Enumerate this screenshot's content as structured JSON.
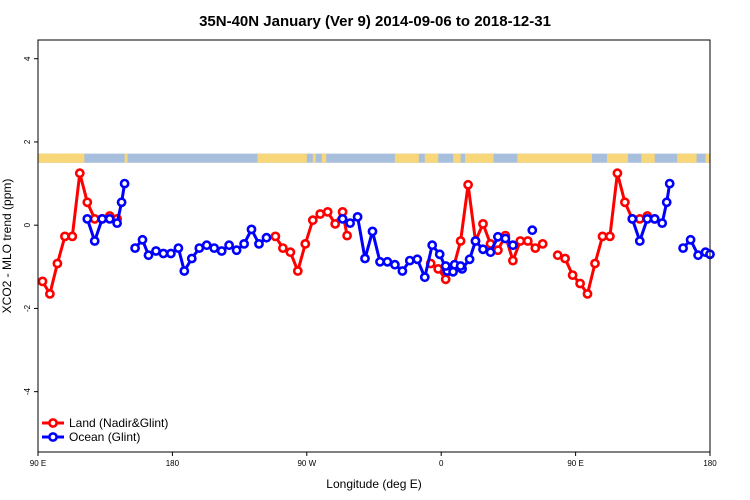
{
  "chart_data": {
    "type": "line",
    "title": "35N-40N January (Ver 9)   2014-09-06 to 2018-12-31",
    "xlabel": "Longitude (deg E)",
    "ylabel": "XCO2 - MLO trend (ppm)",
    "x_unit": "deg E",
    "xlim": [
      90,
      540
    ],
    "ylim": [
      -5.45,
      4.45
    ],
    "x_ticks": [
      {
        "value": 90,
        "label": "90 E"
      },
      {
        "value": 180,
        "label": "180"
      },
      {
        "value": 270,
        "label": "90 W"
      },
      {
        "value": 360,
        "label": "0"
      },
      {
        "value": 450,
        "label": "90 E"
      },
      {
        "value": 540,
        "label": "180"
      }
    ],
    "y_ticks": [
      {
        "value": -4,
        "label": "-4"
      },
      {
        "value": -2,
        "label": "-2"
      },
      {
        "value": 0,
        "label": "0"
      },
      {
        "value": 2,
        "label": "2"
      },
      {
        "value": 4,
        "label": "4"
      }
    ],
    "grid": false,
    "legend_position": "bottom-left",
    "land_ocean_strip": {
      "y_range": [
        1.5,
        1.72
      ],
      "ocean_color": "#a7bedc",
      "land_color": "#f8d77a",
      "land_segments": [
        [
          90,
          121
        ],
        [
          104,
          112
        ],
        [
          105,
          113
        ],
        [
          148,
          150
        ],
        [
          237,
          270
        ],
        [
          274,
          276
        ],
        [
          280,
          283
        ],
        [
          329,
          345
        ],
        [
          349,
          358
        ],
        [
          368,
          373
        ],
        [
          376,
          395
        ],
        [
          411,
          461
        ],
        [
          471,
          485
        ],
        [
          494,
          503
        ],
        [
          518,
          531
        ],
        [
          537,
          540
        ]
      ]
    },
    "series": [
      {
        "name": "Land (Nadir&Glint)",
        "color": "#ff0000",
        "segments": [
          [
            [
              93,
              -1.35
            ],
            [
              98,
              -1.65
            ],
            [
              103,
              -0.92
            ],
            [
              108,
              -0.27
            ],
            [
              113,
              -0.27
            ],
            [
              118,
              1.25
            ],
            [
              123,
              0.55
            ],
            [
              128,
              0.15
            ],
            [
              133,
              0.15
            ],
            [
              138,
              0.22
            ],
            [
              143,
              0.15
            ]
          ],
          [
            [
              249,
              -0.27
            ],
            [
              254,
              -0.55
            ],
            [
              259,
              -0.65
            ],
            [
              264,
              -1.1
            ],
            [
              269,
              -0.45
            ],
            [
              274,
              0.12
            ],
            [
              279,
              0.27
            ],
            [
              284,
              0.32
            ],
            [
              289,
              0.03
            ],
            [
              294,
              0.32
            ],
            [
              297,
              -0.25
            ]
          ],
          [
            [
              353,
              -0.92
            ],
            [
              358,
              -1.05
            ],
            [
              363,
              -1.3
            ],
            [
              368,
              -1.05
            ],
            [
              373,
              -0.38
            ],
            [
              378,
              0.97
            ],
            [
              383,
              -0.38
            ],
            [
              388,
              0.03
            ],
            [
              393,
              -0.45
            ],
            [
              398,
              -0.6
            ],
            [
              403,
              -0.25
            ],
            [
              408,
              -0.85
            ],
            [
              413,
              -0.38
            ],
            [
              418,
              -0.38
            ],
            [
              423,
              -0.55
            ],
            [
              428,
              -0.45
            ]
          ],
          [
            [
              438,
              -0.72
            ],
            [
              443,
              -0.8
            ],
            [
              448,
              -1.2
            ],
            [
              453,
              -1.4
            ],
            [
              458,
              -1.65
            ],
            [
              463,
              -0.92
            ],
            [
              468,
              -0.27
            ],
            [
              473,
              -0.27
            ],
            [
              478,
              1.25
            ],
            [
              483,
              0.55
            ],
            [
              488,
              0.15
            ],
            [
              493,
              0.15
            ],
            [
              498,
              0.22
            ],
            [
              503,
              0.15
            ]
          ]
        ]
      },
      {
        "name": "Ocean (Glint)",
        "color": "#0000ff",
        "segments": [
          [
            [
              123,
              0.15
            ],
            [
              128,
              -0.38
            ],
            [
              133,
              0.15
            ],
            [
              138,
              0.15
            ],
            [
              143,
              0.05
            ],
            [
              146,
              0.55
            ],
            [
              148,
              1.0
            ]
          ],
          [
            [
              155,
              -0.55
            ],
            [
              160,
              -0.35
            ],
            [
              164,
              -0.72
            ],
            [
              169,
              -0.62
            ],
            [
              174,
              -0.68
            ],
            [
              179,
              -0.68
            ],
            [
              184,
              -0.55
            ],
            [
              188,
              -1.1
            ],
            [
              193,
              -0.8
            ],
            [
              198,
              -0.55
            ],
            [
              203,
              -0.48
            ],
            [
              208,
              -0.55
            ],
            [
              213,
              -0.62
            ],
            [
              218,
              -0.48
            ],
            [
              223,
              -0.6
            ],
            [
              228,
              -0.45
            ],
            [
              233,
              -0.1
            ],
            [
              238,
              -0.45
            ],
            [
              243,
              -0.3
            ]
          ],
          [
            [
              294,
              0.15
            ],
            [
              299,
              0.05
            ],
            [
              304,
              0.2
            ],
            [
              309,
              -0.8
            ],
            [
              314,
              -0.15
            ],
            [
              319,
              -0.88
            ],
            [
              324,
              -0.88
            ],
            [
              329,
              -0.95
            ],
            [
              334,
              -1.1
            ],
            [
              339,
              -0.85
            ],
            [
              344,
              -0.82
            ],
            [
              349,
              -1.25
            ],
            [
              354,
              -0.48
            ],
            [
              359,
              -0.7
            ],
            [
              364,
              -1.1
            ],
            [
              369,
              -0.95
            ],
            [
              374,
              -1.05
            ],
            [
              379,
              -0.82
            ],
            [
              383,
              -0.38
            ],
            [
              388,
              -0.58
            ],
            [
              393,
              -0.65
            ],
            [
              398,
              -0.28
            ],
            [
              403,
              -0.32
            ],
            [
              408,
              -0.48
            ]
          ],
          [
            [
              421,
              -0.12
            ]
          ],
          [
            [
              488,
              0.15
            ],
            [
              493,
              -0.38
            ],
            [
              498,
              0.15
            ],
            [
              503,
              0.15
            ],
            [
              508,
              0.05
            ],
            [
              511,
              0.55
            ],
            [
              513,
              1.0
            ]
          ],
          [
            [
              522,
              -0.55
            ],
            [
              527,
              -0.35
            ],
            [
              532,
              -0.72
            ],
            [
              537,
              -0.65
            ],
            [
              540,
              -0.7
            ]
          ],
          [
            [
              363,
              -0.98
            ],
            [
              368,
              -1.12
            ],
            [
              373,
              -0.98
            ]
          ]
        ]
      }
    ]
  }
}
